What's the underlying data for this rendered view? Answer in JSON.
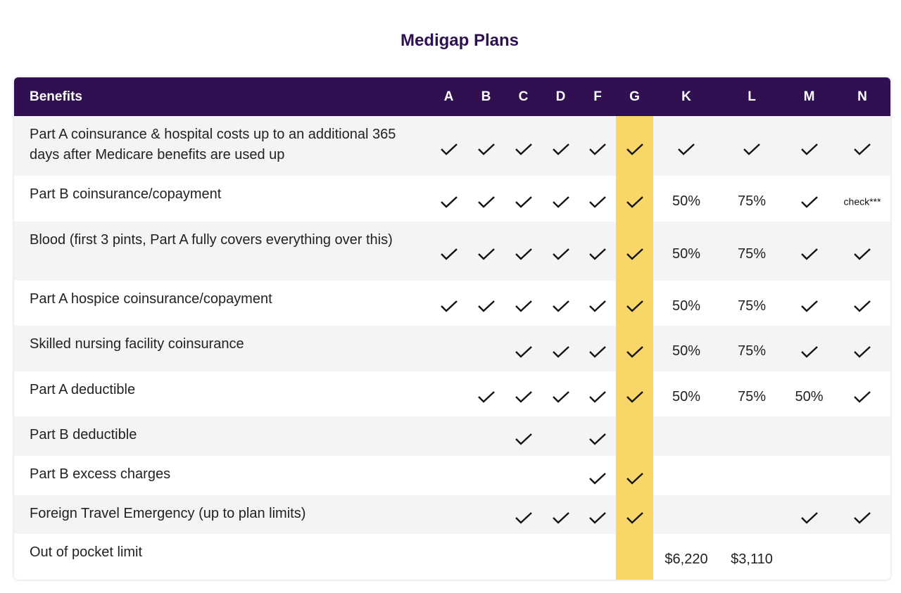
{
  "title": "Medigap Plans",
  "highlight_color": "#f8d668",
  "header_color": "#311052",
  "columns": [
    "Benefits",
    "A",
    "B",
    "C",
    "D",
    "F",
    "G",
    "K",
    "L",
    "M",
    "N"
  ],
  "highlight_plan": "G",
  "rows": [
    {
      "benefit": "Part A coinsurance & hospital costs up to an additional 365 days after Medicare benefits are used up",
      "values": [
        "check",
        "check",
        "check",
        "check",
        "check",
        "check",
        "check",
        "check",
        "check",
        "check"
      ]
    },
    {
      "benefit": "Part B coinsurance/copayment",
      "values": [
        "check",
        "check",
        "check",
        "check",
        "check",
        "check",
        "50%",
        "75%",
        "check",
        "check***"
      ]
    },
    {
      "benefit": "Blood (first 3 pints, Part A fully covers everything over this)",
      "values": [
        "check",
        "check",
        "check",
        "check",
        "check",
        "check",
        "50%",
        "75%",
        "check",
        "check"
      ]
    },
    {
      "benefit": "Part A hospice coinsurance/copayment",
      "values": [
        "check",
        "check",
        "check",
        "check",
        "check",
        "check",
        "50%",
        "75%",
        "check",
        "check"
      ]
    },
    {
      "benefit": "Skilled nursing facility coinsurance",
      "values": [
        "",
        "",
        "check",
        "check",
        "check",
        "check",
        "50%",
        "75%",
        "check",
        "check"
      ]
    },
    {
      "benefit": "Part A deductible",
      "values": [
        "",
        "check",
        "check",
        "check",
        "check",
        "check",
        "50%",
        "75%",
        "50%",
        "check"
      ]
    },
    {
      "benefit": "Part B deductible",
      "values": [
        "",
        "",
        "check",
        "",
        "check",
        "",
        "",
        "",
        "",
        ""
      ]
    },
    {
      "benefit": "Part B excess charges",
      "values": [
        "",
        "",
        "",
        "",
        "check",
        "check",
        "",
        "",
        "",
        ""
      ]
    },
    {
      "benefit": "Foreign Travel Emergency (up to plan limits)",
      "values": [
        "",
        "",
        "check",
        "check",
        "check",
        "check",
        "",
        "",
        "check",
        "check"
      ]
    },
    {
      "benefit": "Out of pocket limit",
      "values": [
        "",
        "",
        "",
        "",
        "",
        "",
        "$6,220",
        "$3,110",
        "",
        ""
      ]
    }
  ]
}
